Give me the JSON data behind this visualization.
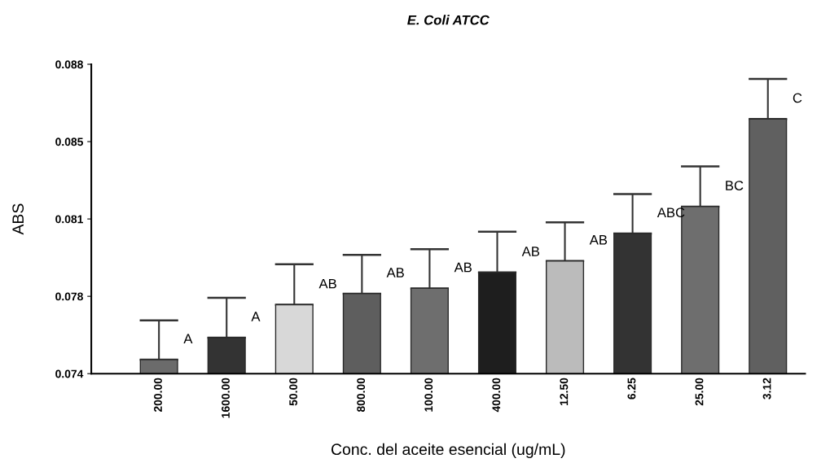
{
  "chart_data": {
    "type": "bar",
    "title": "E. Coli ATCC",
    "xlabel": "Conc. del aceite esencial (ug/mL)",
    "ylabel": "ABS",
    "categories": [
      "200.00",
      "1600.00",
      "50.00",
      "800.00",
      "100.00",
      "400.00",
      "12.50",
      "6.25",
      "25.00",
      "3.12"
    ],
    "values": [
      0.07463,
      0.07563,
      0.07712,
      0.07762,
      0.07786,
      0.07858,
      0.0791,
      0.08034,
      0.08156,
      0.08552
    ],
    "errors": [
      [
        0.07463,
        0.07641
      ],
      [
        0.07563,
        0.07743
      ],
      [
        0.07712,
        0.07895
      ],
      [
        0.07762,
        0.07937
      ],
      [
        0.07786,
        0.07963
      ],
      [
        0.07858,
        0.08042
      ],
      [
        0.0791,
        0.08085
      ],
      [
        0.08034,
        0.08213
      ],
      [
        0.08156,
        0.08338
      ],
      [
        0.08552,
        0.08734
      ]
    ],
    "colors": [
      "#6b6b6b",
      "#333333",
      "#d8d8d8",
      "#5e5e5e",
      "#6e6e6e",
      "#1e1e1e",
      "#bbbbbb",
      "#333333",
      "#6e6e6e",
      "#606060"
    ],
    "ylim": [
      0.074,
      0.088
    ],
    "yticks": [
      {
        "value": 0.074,
        "label": "0.074"
      },
      {
        "value": 0.0775,
        "label": "0.078"
      },
      {
        "value": 0.081,
        "label": "0.081"
      },
      {
        "value": 0.0845,
        "label": "0.085"
      },
      {
        "value": 0.088,
        "label": "0.088"
      }
    ],
    "annotations": [
      {
        "text": "A",
        "x": "200.00",
        "y": 0.07463
      },
      {
        "text": "A",
        "x": "1600.00",
        "y": 0.07563
      },
      {
        "text": "AB",
        "x": "50.00",
        "y": 0.07712
      },
      {
        "text": "AB",
        "x": "800.00",
        "y": 0.07762
      },
      {
        "text": "AB",
        "x": "100.00",
        "y": 0.07786
      },
      {
        "text": "AB",
        "x": "400.00",
        "y": 0.07858
      },
      {
        "text": "AB",
        "x": "12.50",
        "y": 0.0791
      },
      {
        "text": "ABC",
        "x": "6.25",
        "y": 0.08034
      },
      {
        "text": "BC",
        "x": "25.00",
        "y": 0.08156
      },
      {
        "text": "C",
        "x": "3.12",
        "y": 0.08552
      }
    ],
    "grid": false,
    "legend": false
  }
}
